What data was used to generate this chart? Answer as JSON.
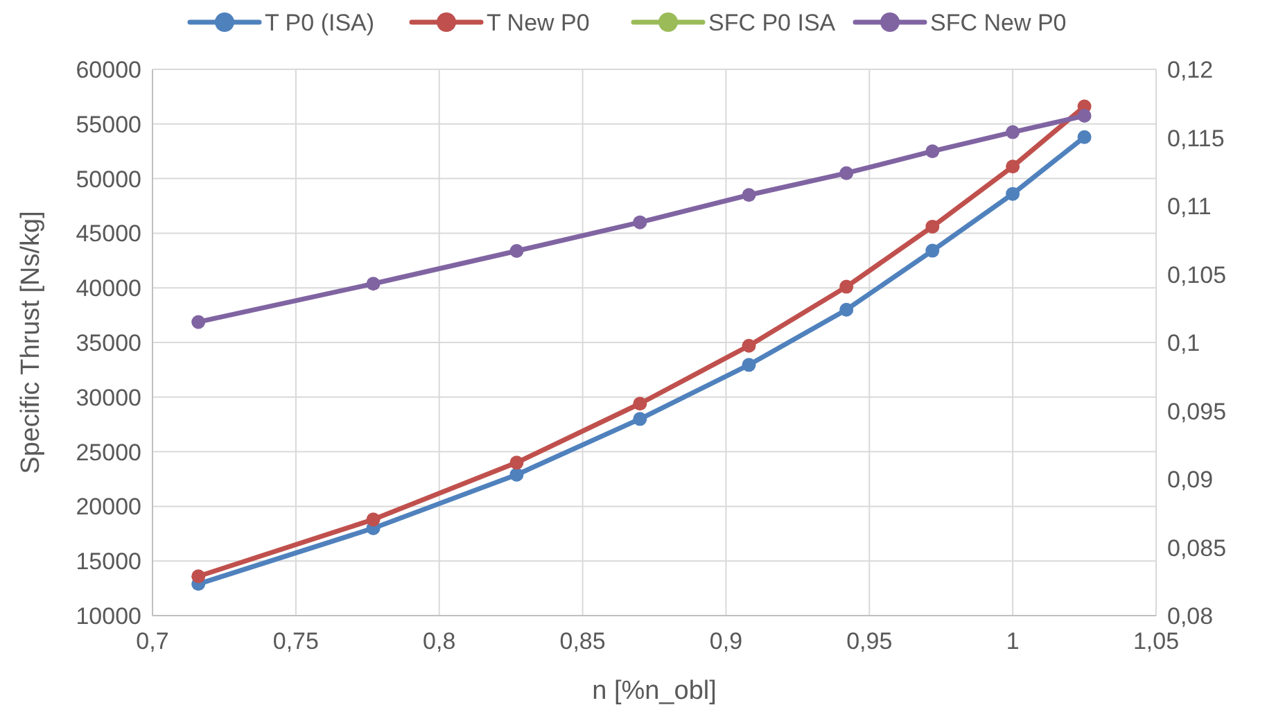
{
  "chart_data": {
    "type": "line",
    "xlabel": "n [%n_obl]",
    "ylabel": "Specific  Thrust [Ns/kg]",
    "legend": "top",
    "grid": true,
    "marker": "circle",
    "line_style": "solid",
    "x": [
      0.716,
      0.777,
      0.827,
      0.87,
      0.908,
      0.942,
      0.972,
      1.0,
      1.025
    ],
    "xlim": [
      0.7,
      1.05
    ],
    "xticks": [
      {
        "value": 0.7,
        "label": "0,7"
      },
      {
        "value": 0.75,
        "label": "0,75"
      },
      {
        "value": 0.8,
        "label": "0,8"
      },
      {
        "value": 0.85,
        "label": "0,85"
      },
      {
        "value": 0.9,
        "label": "0,9"
      },
      {
        "value": 0.95,
        "label": "0,95"
      },
      {
        "value": 1,
        "label": "1"
      },
      {
        "value": 1.05,
        "label": "1,05"
      }
    ],
    "ylim": [
      10000,
      60000
    ],
    "yticks": [
      10000,
      15000,
      20000,
      25000,
      30000,
      35000,
      40000,
      45000,
      50000,
      55000,
      60000
    ],
    "y2lim": [
      0.08,
      0.12
    ],
    "y2ticks": [
      {
        "value": 0.08,
        "label": "0,08"
      },
      {
        "value": 0.085,
        "label": "0,085"
      },
      {
        "value": 0.09,
        "label": "0,09"
      },
      {
        "value": 0.095,
        "label": "0,095"
      },
      {
        "value": 0.1,
        "label": "0,1"
      },
      {
        "value": 0.105,
        "label": "0,105"
      },
      {
        "value": 0.11,
        "label": "0,11"
      },
      {
        "value": 0.115,
        "label": "0,115"
      },
      {
        "value": 0.12,
        "label": "0,12"
      }
    ],
    "series": [
      {
        "name": "T P0 (ISA)",
        "color": "#4f81bd",
        "values": [
          12900,
          18000,
          22900,
          28000,
          32950,
          38000,
          43400,
          48600,
          53800
        ]
      },
      {
        "name": "T New P0",
        "color": "#c0504d",
        "values": [
          13600,
          18800,
          24000,
          29400,
          34700,
          40100,
          45600,
          51100,
          56600
        ]
      },
      {
        "name": "SFC P0 ISA",
        "color": "#9bbb59",
        "axis": "y2",
        "values": [
          null,
          null,
          null,
          null,
          null,
          null,
          null,
          null,
          null
        ]
      },
      {
        "name": "SFC New P0",
        "color": "#8064a2",
        "axis": "y2",
        "values": [
          0.1015,
          0.1043,
          0.1067,
          0.1088,
          0.1108,
          0.1124,
          0.114,
          0.1154,
          0.1166
        ]
      }
    ]
  }
}
